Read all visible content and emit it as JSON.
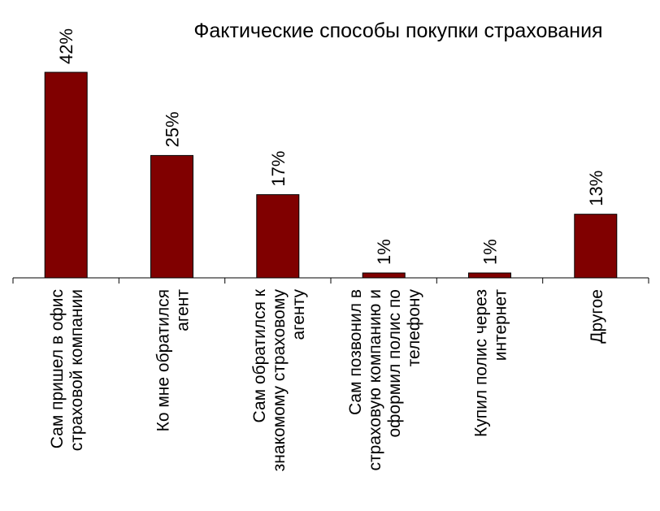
{
  "chart_data": {
    "type": "bar",
    "title": "Фактические способы покупки страхования",
    "categories": [
      [
        "Сам пришел в офис",
        "страховой компании"
      ],
      [
        "Ко мне обратился",
        "агент"
      ],
      [
        "Сам обратился к",
        "знакомому страховому",
        "агенту"
      ],
      [
        "Сам позвонил в",
        "страховую компанию и",
        "оформил полис по",
        "телефону"
      ],
      [
        "Купил полис через",
        "интернет"
      ],
      [
        "Другое"
      ]
    ],
    "values": [
      42,
      25,
      17,
      1,
      1,
      13
    ],
    "value_labels": [
      "42%",
      "25%",
      "17%",
      "1%",
      "1%",
      "13%"
    ],
    "unit": "%",
    "ylim": [
      0,
      42
    ],
    "grid": false,
    "legend": "none",
    "colors": {
      "bar": "#800000",
      "bar_edge": "#000000",
      "axis": "#000000"
    }
  }
}
